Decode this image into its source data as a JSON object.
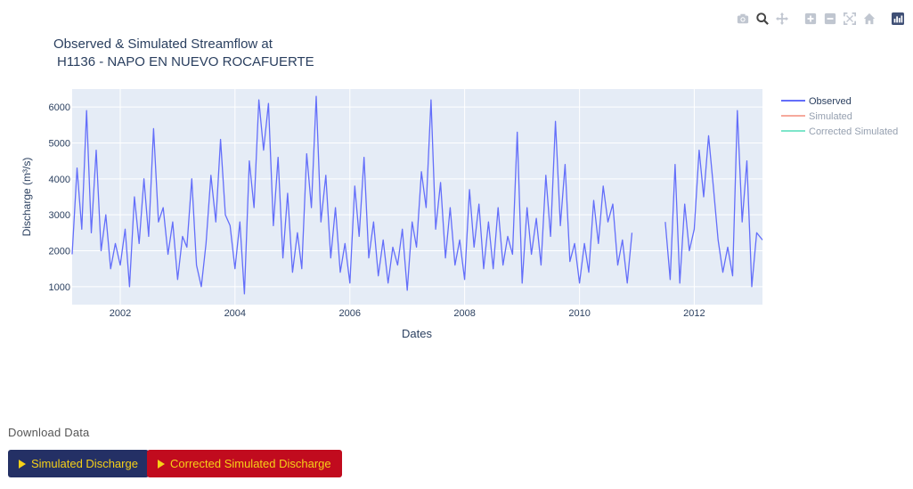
{
  "chart_data": {
    "type": "line",
    "title_line1": "Observed & Simulated Streamflow at",
    "title_line2": "H1136 - NAPO EN NUEVO ROCAFUERTE",
    "xlabel": "Dates",
    "ylabel": "Discharge (m³/s)",
    "x_range": [
      "2001-03-01",
      "2013-03-10"
    ],
    "y_range": [
      500,
      6500
    ],
    "y_ticks": [
      1000,
      2000,
      3000,
      4000,
      5000,
      6000
    ],
    "x_ticks": [
      "2002",
      "2004",
      "2006",
      "2008",
      "2010",
      "2012"
    ],
    "grid": true,
    "legend_position": "top-right",
    "series": [
      {
        "name": "Observed",
        "color": "#636efa",
        "visible": true,
        "x": [
          "2001-03-01",
          "2001-04-01",
          "2001-05-01",
          "2001-06-01",
          "2001-07-01",
          "2001-08-01",
          "2001-09-01",
          "2001-10-01",
          "2001-11-01",
          "2001-12-01",
          "2002-01-01",
          "2002-02-01",
          "2002-03-01",
          "2002-04-01",
          "2002-05-01",
          "2002-06-01",
          "2002-07-01",
          "2002-08-01",
          "2002-09-01",
          "2002-10-01",
          "2002-11-01",
          "2002-12-01",
          "2003-01-01",
          "2003-02-01",
          "2003-03-01",
          "2003-04-01",
          "2003-05-01",
          "2003-06-01",
          "2003-07-01",
          "2003-08-01",
          "2003-09-01",
          "2003-10-01",
          "2003-11-01",
          "2003-12-01",
          "2004-01-01",
          "2004-02-01",
          "2004-03-01",
          "2004-04-01",
          "2004-05-01",
          "2004-06-01",
          "2004-07-01",
          "2004-08-01",
          "2004-09-01",
          "2004-10-01",
          "2004-11-01",
          "2004-12-01",
          "2005-01-01",
          "2005-02-01",
          "2005-03-01",
          "2005-04-01",
          "2005-05-01",
          "2005-06-01",
          "2005-07-01",
          "2005-08-01",
          "2005-09-01",
          "2005-10-01",
          "2005-11-01",
          "2005-12-01",
          "2006-01-01",
          "2006-02-01",
          "2006-03-01",
          "2006-04-01",
          "2006-05-01",
          "2006-06-01",
          "2006-07-01",
          "2006-08-01",
          "2006-09-01",
          "2006-10-01",
          "2006-11-01",
          "2006-12-01",
          "2007-01-01",
          "2007-02-01",
          "2007-03-01",
          "2007-04-01",
          "2007-05-01",
          "2007-06-01",
          "2007-07-01",
          "2007-08-01",
          "2007-09-01",
          "2007-10-01",
          "2007-11-01",
          "2007-12-01",
          "2008-01-01",
          "2008-02-01",
          "2008-03-01",
          "2008-04-01",
          "2008-05-01",
          "2008-06-01",
          "2008-07-01",
          "2008-08-01",
          "2008-09-01",
          "2008-10-01",
          "2008-11-01",
          "2008-12-01",
          "2009-01-01",
          "2009-02-01",
          "2009-03-01",
          "2009-04-01",
          "2009-05-01",
          "2009-06-01",
          "2009-07-01",
          "2009-08-01",
          "2009-09-01",
          "2009-10-01",
          "2009-11-01",
          "2009-12-01",
          "2010-01-01",
          "2010-02-01",
          "2010-03-01",
          "2010-04-01",
          "2010-05-01",
          "2010-06-01",
          "2010-07-01",
          "2010-08-01",
          "2010-09-01",
          "2010-10-01",
          "2010-11-01",
          "2010-12-01",
          "2011-07-01",
          "2011-08-01",
          "2011-09-01",
          "2011-10-01",
          "2011-11-01",
          "2011-12-01",
          "2012-01-01",
          "2012-02-01",
          "2012-03-01",
          "2012-04-01",
          "2012-05-01",
          "2012-06-01",
          "2012-07-01",
          "2012-08-01",
          "2012-09-01",
          "2012-10-01",
          "2012-11-01",
          "2012-12-01",
          "2013-01-01",
          "2013-02-01",
          "2013-03-10"
        ],
        "y": [
          1900,
          4300,
          2600,
          5900,
          2500,
          4800,
          2000,
          3000,
          1500,
          2200,
          1600,
          2600,
          1000,
          3500,
          2200,
          4000,
          2400,
          5400,
          2800,
          3200,
          1900,
          2800,
          1200,
          2400,
          2100,
          4000,
          1600,
          1000,
          2200,
          4100,
          2800,
          5100,
          3000,
          2700,
          1500,
          2800,
          800,
          4500,
          3200,
          6200,
          4800,
          6100,
          2700,
          4600,
          1800,
          3600,
          1400,
          2500,
          1500,
          4700,
          3200,
          6300,
          2800,
          4100,
          1800,
          3200,
          1400,
          2200,
          1100,
          3800,
          2400,
          4600,
          1800,
          2800,
          1300,
          2300,
          1100,
          2100,
          1600,
          2600,
          900,
          2800,
          2100,
          4200,
          3200,
          6200,
          2600,
          3900,
          1800,
          3200,
          1600,
          2300,
          1200,
          3700,
          2100,
          3300,
          1500,
          2800,
          1500,
          3200,
          1600,
          2400,
          1900,
          5300,
          1100,
          3200,
          1900,
          2900,
          1600,
          4100,
          2400,
          5600,
          2700,
          4400,
          1700,
          2200,
          1100,
          2200,
          1400,
          3400,
          2200,
          3800,
          2800,
          3300,
          1600,
          2300,
          1100,
          2500,
          2800,
          1200,
          4400,
          1100,
          3300,
          2000,
          2600,
          4800,
          3500,
          5200,
          3800,
          2300,
          1400,
          2100,
          1300,
          5900,
          2800,
          4500,
          1000,
          2500,
          2300
        ]
      },
      {
        "name": "Simulated",
        "color": "#ef553b",
        "visible": false,
        "x": [],
        "y": []
      },
      {
        "name": "Corrected Simulated",
        "color": "#00cc96",
        "visible": false,
        "x": [],
        "y": []
      }
    ]
  },
  "modebar": {
    "icons": [
      "camera-icon",
      "zoom-icon",
      "pan-icon",
      "zoom-in-icon",
      "zoom-out-icon",
      "autoscale-icon",
      "reset-axes-icon",
      "plotly-logo-icon"
    ]
  },
  "download": {
    "label": "Download Data",
    "simulated_button": "Simulated Discharge",
    "corrected_button": "Corrected Simulated Discharge"
  }
}
